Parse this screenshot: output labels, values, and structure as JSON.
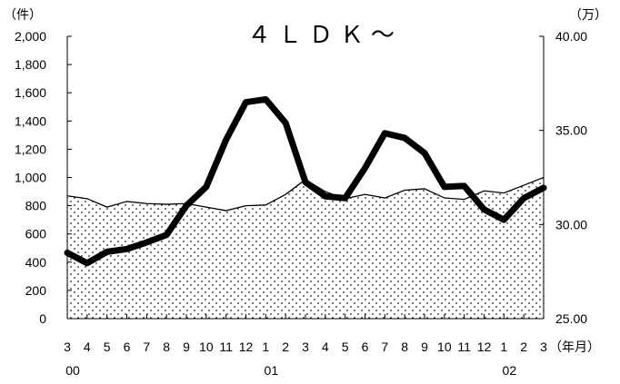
{
  "chart_data": {
    "type": "line",
    "title": "４ＬＤＫ～",
    "left_unit": "（件）",
    "right_unit": "（万）",
    "x_unit": "（年月）",
    "categories": [
      "3",
      "4",
      "5",
      "6",
      "7",
      "8",
      "9",
      "10",
      "11",
      "12",
      "1",
      "2",
      "3",
      "4",
      "5",
      "6",
      "7",
      "8",
      "9",
      "10",
      "11",
      "12",
      "1",
      "2",
      "3"
    ],
    "year_labels": [
      {
        "index": 0,
        "label": "00"
      },
      {
        "index": 10,
        "label": "01"
      },
      {
        "index": 22,
        "label": "02"
      }
    ],
    "y_left": {
      "ticks": [
        "0",
        "200",
        "400",
        "600",
        "800",
        "1,000",
        "1,200",
        "1,400",
        "1,600",
        "1,800",
        "2,000"
      ],
      "ylim": [
        0,
        2000
      ]
    },
    "y_right": {
      "ticks": [
        "25.00",
        "30.00",
        "35.00",
        "40.00"
      ],
      "ylim": [
        25,
        40
      ]
    },
    "series": [
      {
        "axis": "left",
        "style": "area",
        "values": [
          870,
          850,
          790,
          830,
          815,
          810,
          815,
          790,
          765,
          800,
          805,
          880,
          985,
          900,
          850,
          880,
          855,
          910,
          920,
          855,
          845,
          905,
          890,
          945,
          1000
        ]
      },
      {
        "axis": "right",
        "style": "thick-line",
        "values": [
          28.5,
          27.95,
          28.55,
          28.7,
          29.05,
          29.45,
          31.0,
          32.0,
          34.5,
          36.5,
          36.65,
          35.4,
          32.25,
          31.5,
          31.4,
          33.0,
          34.85,
          34.6,
          33.8,
          32.0,
          32.05,
          30.8,
          30.25,
          31.4,
          31.95
        ]
      }
    ]
  }
}
